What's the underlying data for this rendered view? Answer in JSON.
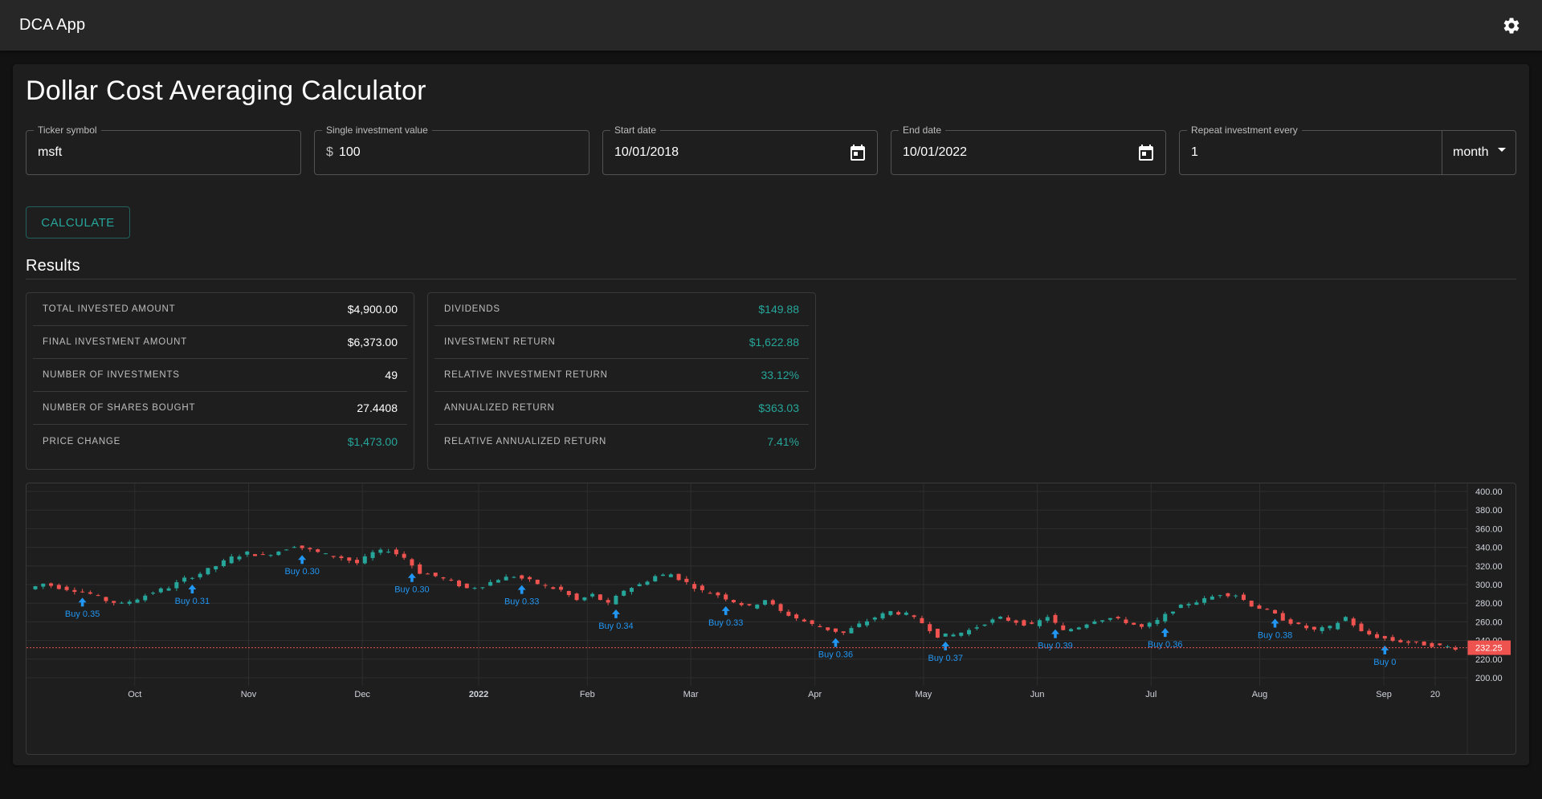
{
  "app": {
    "title": "DCA App",
    "settings_icon": "gear-icon"
  },
  "page": {
    "title": "Dollar Cost Averaging Calculator"
  },
  "form": {
    "ticker": {
      "label": "Ticker symbol",
      "value": "msft"
    },
    "investment": {
      "label": "Single investment value",
      "prefix": "$",
      "value": "100"
    },
    "start_date": {
      "label": "Start date",
      "value": "10/01/2018",
      "icon": "calendar-icon"
    },
    "end_date": {
      "label": "End date",
      "value": "10/01/2022",
      "icon": "calendar-icon"
    },
    "repeat": {
      "label": "Repeat investment every",
      "value": "1",
      "unit": "month"
    },
    "calculate_label": "CALCULATE"
  },
  "results": {
    "title": "Results",
    "left": [
      {
        "label": "TOTAL INVESTED AMOUNT",
        "value": "$4,900.00",
        "positive": false
      },
      {
        "label": "FINAL INVESTMENT AMOUNT",
        "value": "$6,373.00",
        "positive": false
      },
      {
        "label": "NUMBER OF INVESTMENTS",
        "value": "49",
        "positive": false
      },
      {
        "label": "NUMBER OF SHARES BOUGHT",
        "value": "27.4408",
        "positive": false
      },
      {
        "label": "PRICE CHANGE",
        "value": "$1,473.00",
        "positive": true
      }
    ],
    "right": [
      {
        "label": "DIVIDENDS",
        "value": "$149.88",
        "positive": true
      },
      {
        "label": "INVESTMENT RETURN",
        "value": "$1,622.88",
        "positive": true
      },
      {
        "label": "RELATIVE INVESTMENT RETURN",
        "value": "33.12%",
        "positive": true
      },
      {
        "label": "ANNUALIZED RETURN",
        "value": "$363.03",
        "positive": true
      },
      {
        "label": "RELATIVE ANNUALIZED RETURN",
        "value": "7.41%",
        "positive": true
      }
    ]
  },
  "colors": {
    "up": "#26a69a",
    "down": "#ef5350",
    "marker": "#2196f3",
    "accent": "#26a69a"
  },
  "chart_data": {
    "type": "candlestick",
    "y_ticks": [
      "400.00",
      "380.00",
      "360.00",
      "340.00",
      "320.00",
      "300.00",
      "280.00",
      "260.00",
      "240.00",
      "220.00",
      "200.00"
    ],
    "ylim": [
      200,
      400
    ],
    "x_labels": [
      {
        "label": "Oct",
        "week": 4,
        "bold": false
      },
      {
        "label": "Nov",
        "week": 8.4,
        "bold": false
      },
      {
        "label": "Dec",
        "week": 12.8,
        "bold": false
      },
      {
        "label": "2022",
        "week": 17.3,
        "bold": true
      },
      {
        "label": "Feb",
        "week": 21.5,
        "bold": false
      },
      {
        "label": "Mar",
        "week": 25.5,
        "bold": false
      },
      {
        "label": "Apr",
        "week": 30.3,
        "bold": false
      },
      {
        "label": "May",
        "week": 34.5,
        "bold": false
      },
      {
        "label": "Jun",
        "week": 38.9,
        "bold": false
      },
      {
        "label": "Jul",
        "week": 43.3,
        "bold": false
      },
      {
        "label": "Aug",
        "week": 47.5,
        "bold": false
      },
      {
        "label": "Sep",
        "week": 52.3,
        "bold": false
      },
      {
        "label": "20",
        "week": 54.8,
        "bold": false
      }
    ],
    "price_path": [
      [
        0,
        295
      ],
      [
        1,
        301
      ],
      [
        2,
        297
      ],
      [
        3,
        294
      ],
      [
        4,
        290
      ],
      [
        5,
        283
      ],
      [
        6,
        279
      ],
      [
        7,
        285
      ],
      [
        8,
        292
      ],
      [
        9,
        297
      ],
      [
        10,
        306
      ],
      [
        11,
        312
      ],
      [
        12,
        320
      ],
      [
        13,
        329
      ],
      [
        14,
        334
      ],
      [
        15,
        331
      ],
      [
        16,
        336
      ],
      [
        17,
        342
      ],
      [
        18,
        337
      ],
      [
        19,
        332
      ],
      [
        20,
        329
      ],
      [
        21,
        323
      ],
      [
        22,
        334
      ],
      [
        23,
        337
      ],
      [
        24,
        329
      ],
      [
        25,
        313
      ],
      [
        26,
        309
      ],
      [
        27,
        303
      ],
      [
        28,
        296
      ],
      [
        29,
        299
      ],
      [
        30,
        306
      ],
      [
        31,
        309
      ],
      [
        32,
        304
      ],
      [
        33,
        298
      ],
      [
        34,
        294
      ],
      [
        35,
        283
      ],
      [
        36,
        289
      ],
      [
        37,
        279
      ],
      [
        38,
        294
      ],
      [
        39,
        300
      ],
      [
        40,
        309
      ],
      [
        41,
        311
      ],
      [
        42,
        302
      ],
      [
        43,
        293
      ],
      [
        44,
        289
      ],
      [
        45,
        282
      ],
      [
        46,
        276
      ],
      [
        47,
        284
      ],
      [
        48,
        271
      ],
      [
        49,
        264
      ],
      [
        50,
        257
      ],
      [
        51,
        252
      ],
      [
        52,
        248
      ],
      [
        53,
        257
      ],
      [
        54,
        265
      ],
      [
        55,
        271
      ],
      [
        56,
        268
      ],
      [
        57,
        259
      ],
      [
        58,
        245
      ],
      [
        59,
        246
      ],
      [
        60,
        251
      ],
      [
        61,
        259
      ],
      [
        62,
        264
      ],
      [
        63,
        260
      ],
      [
        64,
        256
      ],
      [
        65,
        266
      ],
      [
        66,
        250
      ],
      [
        67,
        255
      ],
      [
        68,
        262
      ],
      [
        69,
        264
      ],
      [
        70,
        260
      ],
      [
        71,
        254
      ],
      [
        72,
        261
      ],
      [
        73,
        273
      ],
      [
        74,
        280
      ],
      [
        75,
        284
      ],
      [
        76,
        290
      ],
      [
        77,
        289
      ],
      [
        78,
        278
      ],
      [
        79,
        272
      ],
      [
        80,
        263
      ],
      [
        81,
        256
      ],
      [
        82,
        251
      ],
      [
        83,
        254
      ],
      [
        84,
        265
      ],
      [
        85,
        249
      ],
      [
        86,
        244
      ],
      [
        87,
        240
      ],
      [
        88,
        238
      ],
      [
        89,
        236
      ],
      [
        90,
        234
      ],
      [
        91,
        232
      ]
    ],
    "buy_markers": [
      {
        "candle": 3,
        "label": "Buy 0.35"
      },
      {
        "candle": 10,
        "label": "Buy 0.31"
      },
      {
        "candle": 17,
        "label": "Buy 0.30"
      },
      {
        "candle": 24,
        "label": "Buy 0.30"
      },
      {
        "candle": 31,
        "label": "Buy 0.33"
      },
      {
        "candle": 37,
        "label": "Buy 0.34"
      },
      {
        "candle": 44,
        "label": "Buy 0.33"
      },
      {
        "candle": 51,
        "label": "Buy 0.36"
      },
      {
        "candle": 58,
        "label": "Buy 0.37"
      },
      {
        "candle": 65,
        "label": "Buy 0.39"
      },
      {
        "candle": 72,
        "label": "Buy 0.36"
      },
      {
        "candle": 79,
        "label": "Buy 0.38"
      },
      {
        "candle": 86,
        "label": "Buy 0"
      }
    ],
    "last_price": "232.25",
    "last_value": 232.25,
    "grid": true
  }
}
